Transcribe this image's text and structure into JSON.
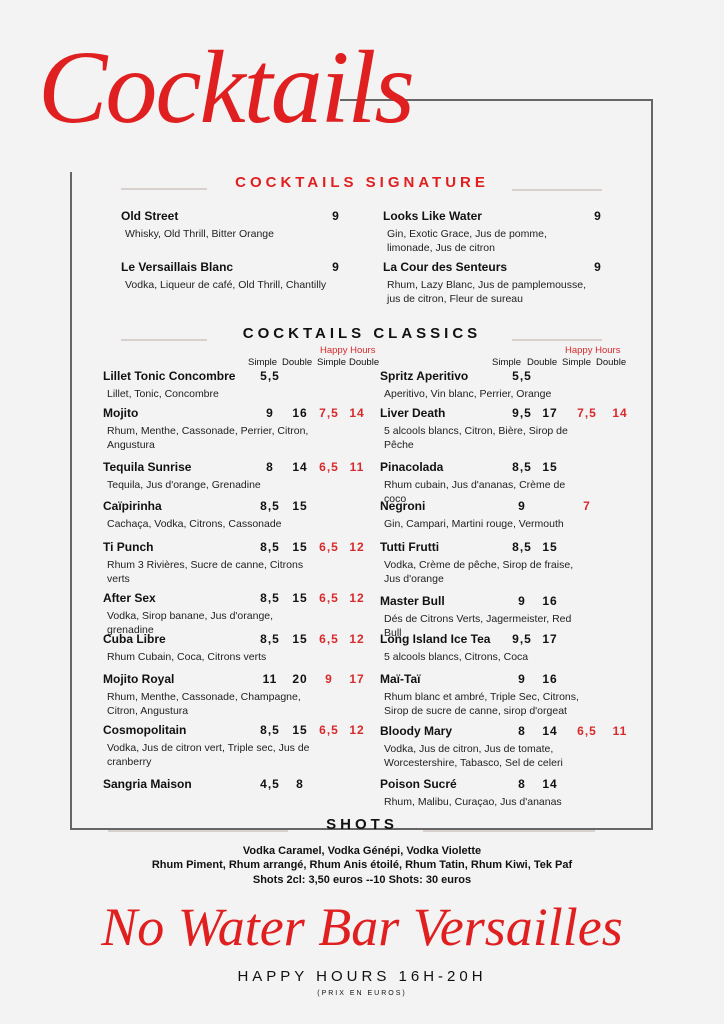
{
  "title": "Cocktails",
  "accent_color": "#e02020",
  "signature": {
    "heading": "COCKTAILS SIGNATURE",
    "items": [
      {
        "name": "Old Street",
        "price": "9",
        "desc": "Whisky, Old Thrill, Bitter Orange"
      },
      {
        "name": "Le Versaillais Blanc",
        "price": "9",
        "desc": "Vodka, Liqueur de café, Old Thrill, Chantilly"
      },
      {
        "name": "Looks Like Water",
        "price": "9",
        "desc": "Gin, Exotic Grace, Jus de pomme, limonade, Jus de citron"
      },
      {
        "name": "La Cour des Senteurs",
        "price": "9",
        "desc": "Rhum, Lazy Blanc, Jus de pamplemousse, jus de citron, Fleur de sureau"
      }
    ]
  },
  "classics": {
    "heading": "COCKTAILS CLASSICS",
    "happy_hours_label": "Happy Hours",
    "col_simple": "Simple",
    "col_double": "Double",
    "left": [
      {
        "name": "Lillet Tonic Concombre",
        "simple": "5,5",
        "double": "",
        "hh_simple": "",
        "hh_double": "",
        "desc": "Lillet, Tonic, Concombre"
      },
      {
        "name": "Mojito",
        "simple": "9",
        "double": "16",
        "hh_simple": "7,5",
        "hh_double": "14",
        "desc": "Rhum, Menthe, Cassonade, Perrier, Citron, Angustura"
      },
      {
        "name": "Tequila Sunrise",
        "simple": "8",
        "double": "14",
        "hh_simple": "6,5",
        "hh_double": "11",
        "desc": "Tequila, Jus d'orange, Grenadine"
      },
      {
        "name": "Caïpirinha",
        "simple": "8,5",
        "double": "15",
        "hh_simple": "",
        "hh_double": "",
        "desc": "Cachaça, Vodka, Citrons, Cassonade"
      },
      {
        "name": "Ti Punch",
        "simple": "8,5",
        "double": "15",
        "hh_simple": "6,5",
        "hh_double": "12",
        "desc": "Rhum 3 Rivières, Sucre de canne, Citrons verts"
      },
      {
        "name": "After Sex",
        "simple": "8,5",
        "double": "15",
        "hh_simple": "6,5",
        "hh_double": "12",
        "desc": "Vodka, Sirop banane, Jus d'orange, grenadine"
      },
      {
        "name": "Cuba Libre",
        "simple": "8,5",
        "double": "15",
        "hh_simple": "6,5",
        "hh_double": "12",
        "desc": "Rhum Cubain, Coca, Citrons verts"
      },
      {
        "name": "Mojito Royal",
        "simple": "11",
        "double": "20",
        "hh_simple": "9",
        "hh_double": "17",
        "desc": "Rhum, Menthe, Cassonade, Champagne, Citron, Angustura"
      },
      {
        "name": "Cosmopolitain",
        "simple": "8,5",
        "double": "15",
        "hh_simple": "6,5",
        "hh_double": "12",
        "desc": "Vodka, Jus de citron vert, Triple sec, Jus de cranberry"
      },
      {
        "name": "Sangria Maison",
        "simple": "4,5",
        "double": "8",
        "hh_simple": "",
        "hh_double": "",
        "desc": ""
      }
    ],
    "right": [
      {
        "name": "Spritz Aperitivo",
        "simple": "5,5",
        "double": "",
        "hh_simple": "",
        "hh_double": "",
        "desc": "Aperitivo, Vin blanc, Perrier, Orange"
      },
      {
        "name": "Liver Death",
        "simple": "9,5",
        "double": "17",
        "hh_simple": "7,5",
        "hh_double": "14",
        "desc": "5 alcools blancs, Citron, Bière, Sirop de Pêche"
      },
      {
        "name": "Pinacolada",
        "simple": "8,5",
        "double": "15",
        "hh_simple": "",
        "hh_double": "",
        "desc": "Rhum cubain, Jus d'ananas, Crème de coco"
      },
      {
        "name": "Negroni",
        "simple": "9",
        "double": "",
        "hh_simple": "7",
        "hh_double": "",
        "desc": "Gin, Campari, Martini rouge, Vermouth"
      },
      {
        "name": "Tutti Frutti",
        "simple": "8,5",
        "double": "15",
        "hh_simple": "",
        "hh_double": "",
        "desc": "Vodka, Crème de pêche, Sirop de fraise, Jus d'orange"
      },
      {
        "name": "Master Bull",
        "simple": "9",
        "double": "16",
        "hh_simple": "",
        "hh_double": "",
        "desc": "Dés de Citrons Verts, Jagermeister, Red Bull"
      },
      {
        "name": "Long Island Ice Tea",
        "simple": "9,5",
        "double": "17",
        "hh_simple": "",
        "hh_double": "",
        "desc": "5 alcools blancs, Citrons, Coca"
      },
      {
        "name": "Maï-Taï",
        "simple": "9",
        "double": "16",
        "hh_simple": "",
        "hh_double": "",
        "desc": "Rhum blanc et ambré, Triple Sec, Citrons, Sirop de sucre de canne, sirop d'orgeat"
      },
      {
        "name": "Bloody Mary",
        "simple": "8",
        "double": "14",
        "hh_simple": "6,5",
        "hh_double": "11",
        "desc": "Vodka, Jus de citron, Jus de tomate, Worcestershire, Tabasco, Sel de celeri"
      },
      {
        "name": "Poison Sucré",
        "simple": "8",
        "double": "14",
        "hh_simple": "",
        "hh_double": "",
        "desc": "Rhum, Malibu, Curaçao, Jus d'ananas"
      }
    ]
  },
  "shots": {
    "heading": "SHOTS",
    "line1": "Vodka Caramel, Vodka Génépi, Vodka Violette",
    "line2": "Rhum Piment, Rhum arrangé, Rhum Anis étoilé, Rhum Tatin, Rhum Kiwi, Tek Paf",
    "line3": "Shots 2cl: 3,50 euros --10 Shots: 30 euros"
  },
  "footer": {
    "bar_name": "No Water Bar Versailles",
    "happy_hours": "HAPPY HOURS 16H-20H",
    "note": "(PRIX EN EUROS)"
  }
}
